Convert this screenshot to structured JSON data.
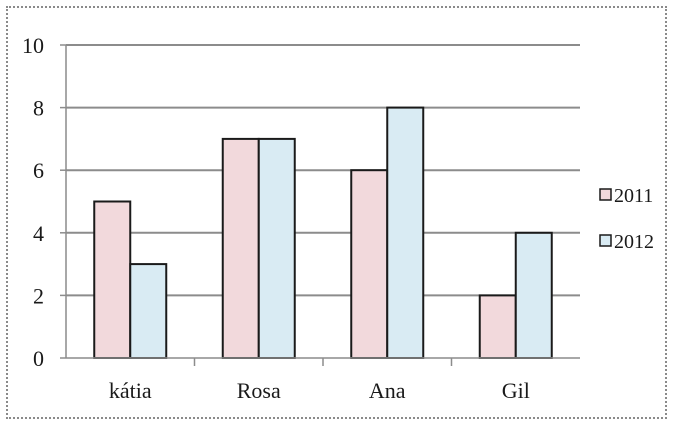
{
  "chart_data": {
    "type": "bar",
    "title": "",
    "xlabel": "",
    "ylabel": "",
    "categories": [
      "kátia",
      "Rosa",
      "Ana",
      "Gil"
    ],
    "series": [
      {
        "name": "2011",
        "values": [
          5,
          7,
          6,
          2
        ],
        "color": "#f2d9dc"
      },
      {
        "name": "2012",
        "values": [
          3,
          7,
          8,
          4
        ],
        "color": "#d9ebf3"
      }
    ],
    "ylim": [
      0,
      10
    ],
    "yticks": [
      0,
      2,
      4,
      6,
      8,
      10
    ],
    "grid": true,
    "legend": "right",
    "bar_outline_color": "#1a1a1a",
    "grid_color": "#8c8c8c"
  }
}
